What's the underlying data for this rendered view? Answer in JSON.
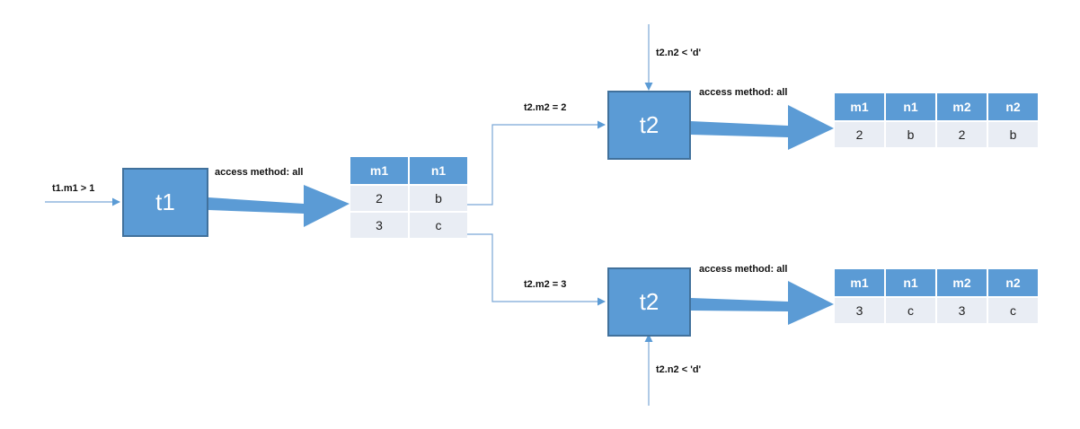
{
  "nodes": {
    "t1_box": "t1",
    "t2_top_box": "t2",
    "t2_bottom_box": "t2"
  },
  "labels": {
    "t1_filter": "t1.m1 > 1",
    "t1_access": "access method: all",
    "t2_top_join": "t2.m2 = 2",
    "t2_top_filter": "t2.n2 < 'd'",
    "t2_top_access": "access method: all",
    "t2_bottom_join": "t2.m2 = 3",
    "t2_bottom_filter": "t2.n2 < 'd'",
    "t2_bottom_access": "access method: all"
  },
  "t1_result": {
    "headers": [
      "m1",
      "n1"
    ],
    "rows": [
      [
        "2",
        "b"
      ],
      [
        "3",
        "c"
      ]
    ]
  },
  "t2_top_result": {
    "headers": [
      "m1",
      "n1",
      "m2",
      "n2"
    ],
    "rows": [
      [
        "2",
        "b",
        "2",
        "b"
      ]
    ]
  },
  "t2_bottom_result": {
    "headers": [
      "m1",
      "n1",
      "m2",
      "n2"
    ],
    "rows": [
      [
        "3",
        "c",
        "3",
        "c"
      ]
    ]
  },
  "colors": {
    "node_fill": "#5b9bd5",
    "node_border": "#41719c",
    "header_fill": "#5b9bd5",
    "cell_fill": "#e9edf4",
    "connector": "#7aa7d6"
  }
}
